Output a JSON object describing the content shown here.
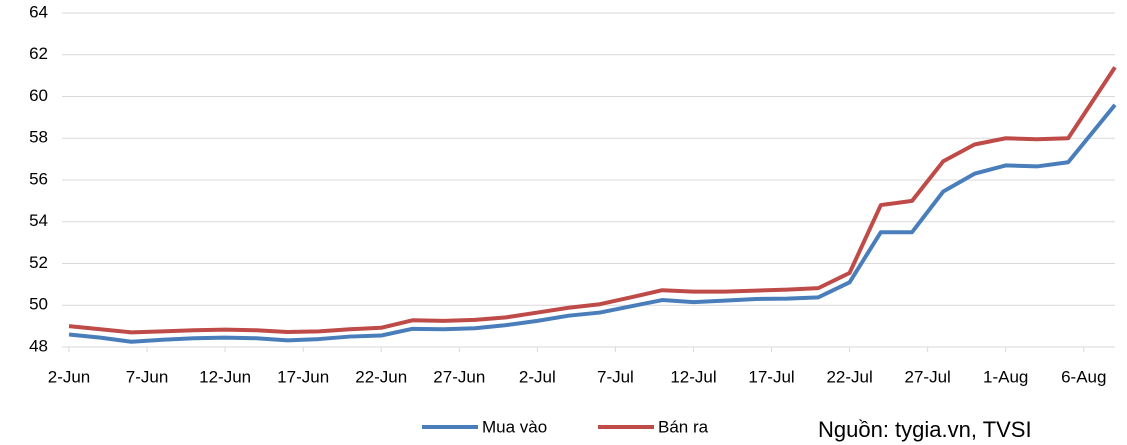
{
  "chart_data": {
    "type": "line",
    "x": [
      0,
      2,
      4,
      6,
      8,
      10,
      12,
      14,
      16,
      18,
      20,
      22,
      24,
      26,
      28,
      30,
      32,
      34,
      36,
      38,
      40,
      42,
      44,
      46,
      48,
      50,
      52,
      54,
      56,
      58,
      60,
      62,
      64,
      67
    ],
    "series": [
      {
        "name": "Mua vào",
        "color": "#4a7ebb",
        "values": [
          48.6,
          48.45,
          48.25,
          48.35,
          48.42,
          48.45,
          48.42,
          48.32,
          48.38,
          48.5,
          48.55,
          48.87,
          48.85,
          48.9,
          49.05,
          49.25,
          49.5,
          49.65,
          49.95,
          50.25,
          50.15,
          50.22,
          50.3,
          50.32,
          50.38,
          51.1,
          53.5,
          53.5,
          55.45,
          56.3,
          56.7,
          56.65,
          56.85,
          59.6
        ]
      },
      {
        "name": "Bán ra",
        "color": "#be4b48",
        "values": [
          49.0,
          48.85,
          48.7,
          48.75,
          48.8,
          48.83,
          48.8,
          48.72,
          48.75,
          48.85,
          48.92,
          49.28,
          49.25,
          49.3,
          49.42,
          49.65,
          49.88,
          50.05,
          50.38,
          50.72,
          50.65,
          50.65,
          50.7,
          50.75,
          50.82,
          51.55,
          54.8,
          55.0,
          56.9,
          57.7,
          58.0,
          57.95,
          58.0,
          61.4
        ]
      }
    ],
    "xlim": [
      0,
      67
    ],
    "xticks": [
      {
        "value": 0,
        "label": "2-Jun"
      },
      {
        "value": 5,
        "label": "7-Jun"
      },
      {
        "value": 10,
        "label": "12-Jun"
      },
      {
        "value": 15,
        "label": "17-Jun"
      },
      {
        "value": 20,
        "label": "22-Jun"
      },
      {
        "value": 25,
        "label": "27-Jun"
      },
      {
        "value": 30,
        "label": "2-Jul"
      },
      {
        "value": 35,
        "label": "7-Jul"
      },
      {
        "value": 40,
        "label": "12-Jul"
      },
      {
        "value": 45,
        "label": "17-Jul"
      },
      {
        "value": 50,
        "label": "22-Jul"
      },
      {
        "value": 55,
        "label": "27-Jul"
      },
      {
        "value": 60,
        "label": "1-Aug"
      },
      {
        "value": 65,
        "label": "6-Aug"
      }
    ],
    "ylim": [
      48,
      64
    ],
    "yticks": [
      48,
      50,
      52,
      54,
      56,
      58,
      60,
      62,
      64
    ],
    "grid": true,
    "legend": "bottom",
    "source": "Nguồn: tygia.vn, TVSI"
  }
}
